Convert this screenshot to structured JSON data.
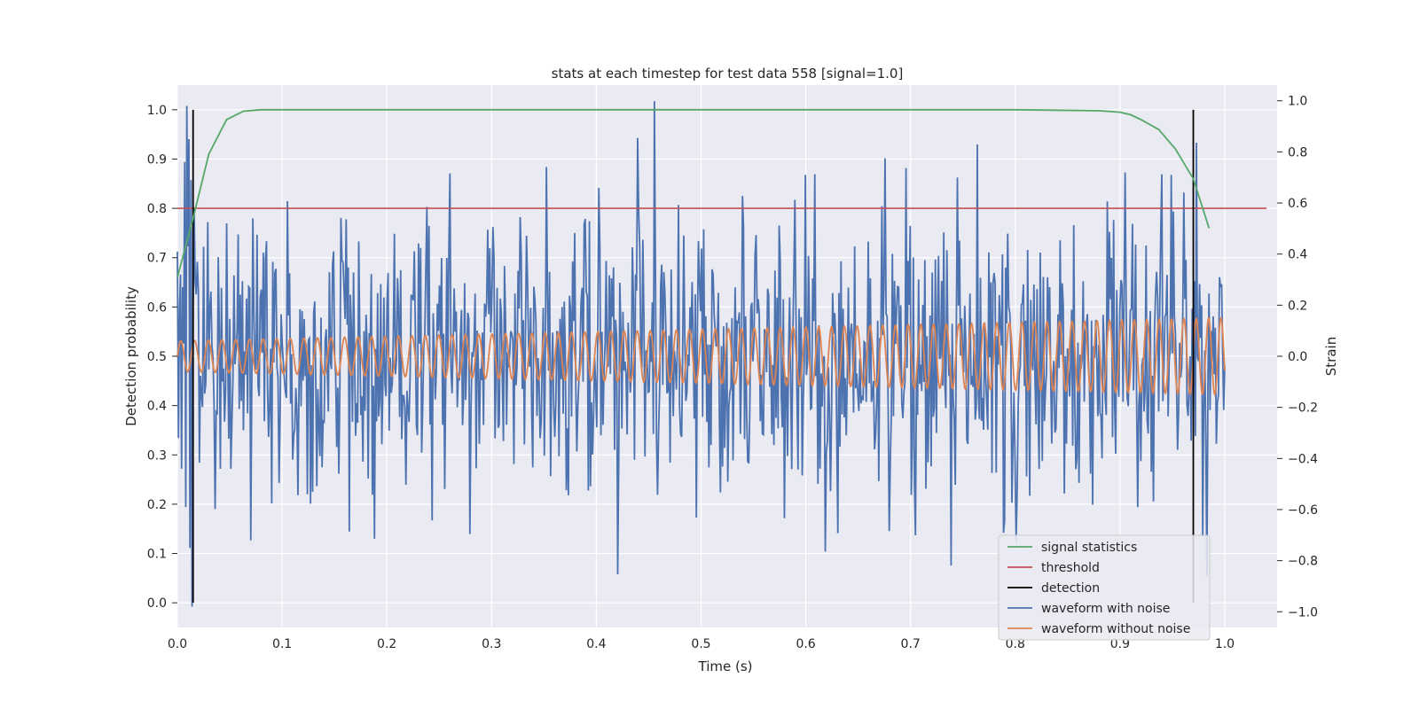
{
  "chart_data": {
    "type": "line",
    "title": "stats at each timestep for test data 558 [signal=1.0]",
    "xlabel": "Time (s)",
    "ylabel_left": "Detection probability",
    "ylabel_right": "Strain",
    "xlim": [
      0.0,
      1.05
    ],
    "ylim_left": [
      -0.05,
      1.05
    ],
    "ylim_right": [
      -1.0,
      1.0
    ],
    "xticks": [
      "0.0",
      "0.1",
      "0.2",
      "0.3",
      "0.4",
      "0.5",
      "0.6",
      "0.7",
      "0.8",
      "0.9",
      "1.0"
    ],
    "yticks_left": [
      "0.0",
      "0.1",
      "0.2",
      "0.3",
      "0.4",
      "0.5",
      "0.6",
      "0.7",
      "0.8",
      "0.9",
      "1.0"
    ],
    "yticks_right": [
      "−1.0",
      "−0.8",
      "−0.6",
      "−0.4",
      "−0.2",
      "0.0",
      "0.2",
      "0.4",
      "0.6",
      "0.8",
      "1.0"
    ],
    "grid": true,
    "legend_position": "lower-right",
    "colors": {
      "background": "#eaeaf2",
      "grid": "#ffffff",
      "signal_statistics": "#55a868",
      "threshold": "#c44e52",
      "detection": "#000000",
      "waveform_with_noise": "#4c72b0",
      "waveform_without_noise": "#dd8452"
    },
    "series": [
      {
        "name": "signal statistics",
        "axis": "left",
        "x": [
          0.0,
          0.015,
          0.03,
          0.047,
          0.063,
          0.08,
          0.1,
          0.2,
          0.4,
          0.6,
          0.8,
          0.88,
          0.9,
          0.91,
          0.92,
          0.937,
          0.953,
          0.97,
          0.985
        ],
        "y": [
          0.66,
          0.78,
          0.91,
          0.98,
          0.997,
          1.0,
          1.0,
          1.0,
          1.0,
          1.0,
          1.0,
          0.998,
          0.995,
          0.99,
          0.98,
          0.96,
          0.92,
          0.86,
          0.76
        ]
      },
      {
        "name": "threshold",
        "axis": "left",
        "x": [
          0.0,
          1.04
        ],
        "y": [
          0.8,
          0.8
        ]
      },
      {
        "name": "detection",
        "axis": "left",
        "segments": [
          {
            "x": 0.015,
            "y": [
              0.0,
              1.0
            ]
          },
          {
            "x": 0.97,
            "y": [
              0.0,
              1.0
            ]
          }
        ]
      },
      {
        "name": "waveform with noise",
        "axis": "right",
        "x_range": [
          0.0,
          1.0
        ],
        "n_points": 1000,
        "std": 0.28,
        "y_excerpt": [
          0.41,
          -0.32,
          0.18,
          0.32,
          -0.44,
          0.27,
          0.05,
          0.76,
          -0.59,
          0.98,
          0.43,
          0.85,
          -0.75,
          0.69,
          -0.98
        ]
      },
      {
        "name": "waveform without noise",
        "axis": "right",
        "x_range": [
          0.0,
          1.0
        ],
        "amplitude_range": [
          0.06,
          0.15
        ],
        "cycles": 76
      }
    ]
  }
}
